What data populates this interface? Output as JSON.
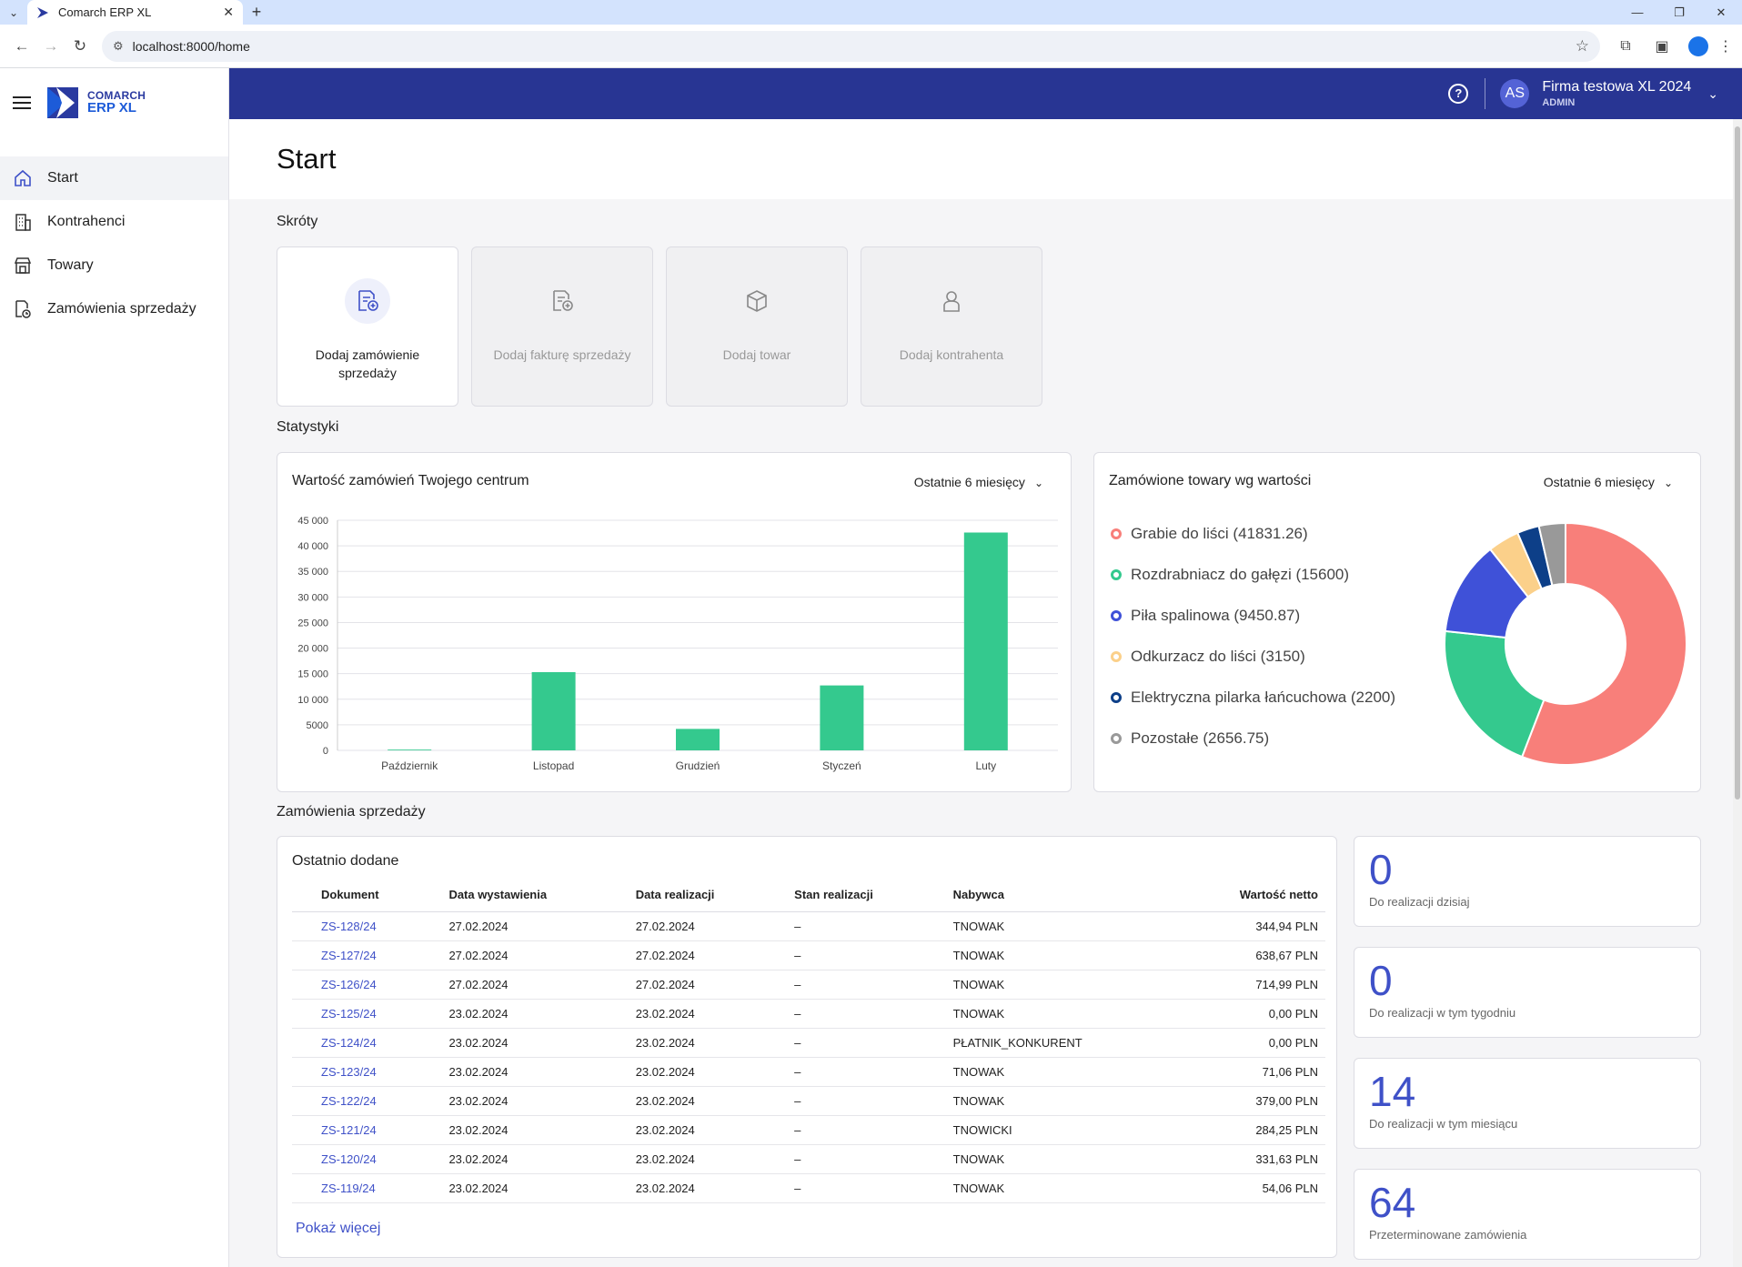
{
  "browser": {
    "tab_title": "Comarch ERP XL",
    "url": "localhost:8000/home"
  },
  "colors": {
    "accent": "#283593",
    "bar": "#34c98e",
    "link": "#3f51c8"
  },
  "sidebar": {
    "logo_line1": "COMARCH",
    "logo_line2": "ERP XL",
    "items": [
      {
        "label": "Start",
        "icon": "home-icon",
        "active": true
      },
      {
        "label": "Kontrahenci",
        "icon": "building-icon"
      },
      {
        "label": "Towary",
        "icon": "store-icon"
      },
      {
        "label": "Zamówienia sprzedaży",
        "icon": "document-clock-icon"
      }
    ]
  },
  "topbar": {
    "avatar": "AS",
    "company": "Firma testowa XL 2024",
    "role": "ADMIN"
  },
  "page": {
    "title": "Start",
    "shortcuts_title": "Skróty",
    "stats_title": "Statystyki",
    "orders_title": "Zamówienia sprzedaży"
  },
  "shortcuts": [
    {
      "label": "Dodaj zamówienie sprzedaży",
      "icon": "add-order-icon",
      "enabled": true
    },
    {
      "label": "Dodaj fakturę sprzedaży",
      "icon": "add-invoice-icon",
      "enabled": false
    },
    {
      "label": "Dodaj towar",
      "icon": "box-icon",
      "enabled": false
    },
    {
      "label": "Dodaj kontrahenta",
      "icon": "person-icon",
      "enabled": false
    }
  ],
  "bar_card": {
    "title": "Wartość zamówień Twojego centrum",
    "period": "Ostatnie 6 miesięcy"
  },
  "donut_card": {
    "title": "Zamówione towary wg wartości",
    "period": "Ostatnie 6 miesięcy"
  },
  "chart_data": [
    {
      "type": "bar",
      "title": "Wartość zamówień Twojego centrum",
      "categories": [
        "Październik",
        "Listopad",
        "Grudzień",
        "Styczeń",
        "Luty"
      ],
      "values": [
        150,
        15300,
        4200,
        12700,
        42600
      ],
      "ylim": [
        0,
        45000
      ],
      "yticks": [
        "0",
        "5000",
        "10 000",
        "15 000",
        "20 000",
        "25 000",
        "30 000",
        "35 000",
        "40 000",
        "45 000"
      ],
      "ytick_values": [
        0,
        5000,
        10000,
        15000,
        20000,
        25000,
        30000,
        35000,
        40000,
        45000
      ],
      "grid": true,
      "color": "#34c98e"
    },
    {
      "type": "pie",
      "title": "Zamówione towary wg wartości",
      "legend_position": "left",
      "slices": [
        {
          "label": "Grabie do liści (41831.26)",
          "value": 41831.26,
          "color": "#f87f7a"
        },
        {
          "label": "Rozdrabniacz do gałęzi (15600)",
          "value": 15600,
          "color": "#34c98e"
        },
        {
          "label": "Piła spalinowa (9450.87)",
          "value": 9450.87,
          "color": "#3f51d8"
        },
        {
          "label": "Odkurzacz do liści (3150)",
          "value": 3150,
          "color": "#fbd08a"
        },
        {
          "label": "Elektryczna pilarka łańcuchowa (2200)",
          "value": 2200,
          "color": "#0d3f88"
        },
        {
          "label": "Pozostałe (2656.75)",
          "value": 2656.75,
          "color": "#999999"
        }
      ]
    }
  ],
  "orders": {
    "subtitle": "Ostatnio dodane",
    "columns": [
      "Dokument",
      "Data wystawienia",
      "Data realizacji",
      "Stan realizacji",
      "Nabywca",
      "Wartość netto"
    ],
    "rows": [
      [
        "ZS-128/24",
        "27.02.2024",
        "27.02.2024",
        "–",
        "TNOWAK",
        "344,94 PLN"
      ],
      [
        "ZS-127/24",
        "27.02.2024",
        "27.02.2024",
        "–",
        "TNOWAK",
        "638,67 PLN"
      ],
      [
        "ZS-126/24",
        "27.02.2024",
        "27.02.2024",
        "–",
        "TNOWAK",
        "714,99 PLN"
      ],
      [
        "ZS-125/24",
        "23.02.2024",
        "23.02.2024",
        "–",
        "TNOWAK",
        "0,00 PLN"
      ],
      [
        "ZS-124/24",
        "23.02.2024",
        "23.02.2024",
        "–",
        "PŁATNIK_KONKURENT",
        "0,00 PLN"
      ],
      [
        "ZS-123/24",
        "23.02.2024",
        "23.02.2024",
        "–",
        "TNOWAK",
        "71,06 PLN"
      ],
      [
        "ZS-122/24",
        "23.02.2024",
        "23.02.2024",
        "–",
        "TNOWAK",
        "379,00 PLN"
      ],
      [
        "ZS-121/24",
        "23.02.2024",
        "23.02.2024",
        "–",
        "TNOWICKI",
        "284,25 PLN"
      ],
      [
        "ZS-120/24",
        "23.02.2024",
        "23.02.2024",
        "–",
        "TNOWAK",
        "331,63 PLN"
      ],
      [
        "ZS-119/24",
        "23.02.2024",
        "23.02.2024",
        "–",
        "TNOWAK",
        "54,06 PLN"
      ]
    ],
    "show_more": "Pokaż więcej"
  },
  "kpis": [
    {
      "value": "0",
      "label": "Do realizacji dzisiaj"
    },
    {
      "value": "0",
      "label": "Do realizacji w tym tygodniu"
    },
    {
      "value": "14",
      "label": "Do realizacji w tym miesiącu"
    },
    {
      "value": "64",
      "label": "Przeterminowane zamówienia"
    }
  ]
}
